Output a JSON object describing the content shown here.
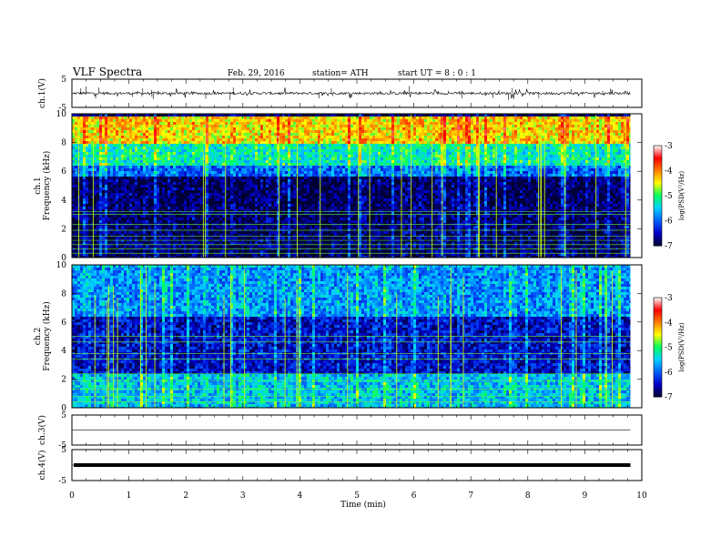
{
  "header": {
    "title": "VLF  Spectra",
    "date": "Feb. 29, 2016",
    "station": "station= ATH",
    "start": "start  UT  =   8  : 0  : 1"
  },
  "chart_data": [
    {
      "id": "ch1-waveform",
      "type": "line",
      "ylabel": "ch.1(V)",
      "ylim": [
        -5,
        5
      ],
      "yticks": [
        "5",
        "-5"
      ],
      "baseline": 0,
      "description_values": "noise trace near 0 V with spikes between -2 and 2 V"
    },
    {
      "id": "ch1-spectrogram",
      "type": "heatmap",
      "ylabel": "ch.1\nFrequency  (kHz)",
      "ylabel_lines": [
        "ch.1",
        "Frequency  (kHz)"
      ],
      "ylim": [
        0,
        10
      ],
      "yticks": [
        "0",
        "2",
        "4",
        "6",
        "8",
        "10"
      ],
      "xlim": [
        0,
        10
      ],
      "data_end_min": 9.8,
      "bands_khz": [
        {
          "from": 0,
          "to": 5.8,
          "level": -6.9
        },
        {
          "from": 5.8,
          "to": 6.5,
          "level": -6.0
        },
        {
          "from": 6.5,
          "to": 8.0,
          "level": -5.3
        },
        {
          "from": 8.0,
          "to": 10,
          "level": -4.4
        }
      ],
      "lines_khz": [
        0.3,
        0.6,
        0.9,
        1.2,
        1.5,
        1.9,
        2.3,
        3.0,
        3.2
      ],
      "colorbar": {
        "label": "log(PSD(V²/Hz)",
        "min": -7,
        "max": -3,
        "ticks": [
          "-3",
          "-4",
          "-5",
          "-6",
          "-7"
        ]
      }
    },
    {
      "id": "ch2-spectrogram",
      "type": "heatmap",
      "ylabel": "ch.2\nFrequency  (kHz)",
      "ylabel_lines": [
        "ch.2",
        "Frequency  (kHz)"
      ],
      "ylim": [
        0,
        10
      ],
      "yticks": [
        "0",
        "2",
        "4",
        "6",
        "8",
        "10"
      ],
      "xlim": [
        0,
        10
      ],
      "data_end_min": 9.8,
      "bands_khz": [
        {
          "from": 0,
          "to": 2.5,
          "level": -5.6
        },
        {
          "from": 2.5,
          "to": 6.5,
          "level": -6.5
        },
        {
          "from": 6.5,
          "to": 10,
          "level": -5.8
        }
      ],
      "lines_khz": [
        0.4,
        0.8,
        1.3,
        1.9,
        2.4,
        3.4,
        3.8,
        4.6,
        5.0
      ],
      "colorbar": {
        "label": "log(PSD(V²/Hz)",
        "min": -7,
        "max": -3,
        "ticks": [
          "-3",
          "-4",
          "-5",
          "-6",
          "-7"
        ]
      }
    },
    {
      "id": "ch3-waveform",
      "type": "line",
      "ylabel": "ch.3(V)",
      "ylim": [
        -5,
        5
      ],
      "yticks": [
        "5",
        "-5"
      ],
      "baseline": 0
    },
    {
      "id": "ch4-waveform",
      "type": "line",
      "ylabel": "ch.4(V)",
      "ylim": [
        -5,
        5
      ],
      "yticks": [
        "5",
        "-5"
      ],
      "baseline": 0
    }
  ],
  "x_axis": {
    "label": "Time  (min)",
    "min": 0,
    "max": 10,
    "ticks": [
      "0",
      "1",
      "2",
      "3",
      "4",
      "5",
      "6",
      "7",
      "8",
      "9",
      "10"
    ]
  },
  "colors": {
    "scale": [
      "#000033",
      "#0000c8",
      "#0060ff",
      "#00d0ff",
      "#00ff60",
      "#ffff00",
      "#ff8000",
      "#ff0000",
      "#ffffff"
    ]
  }
}
